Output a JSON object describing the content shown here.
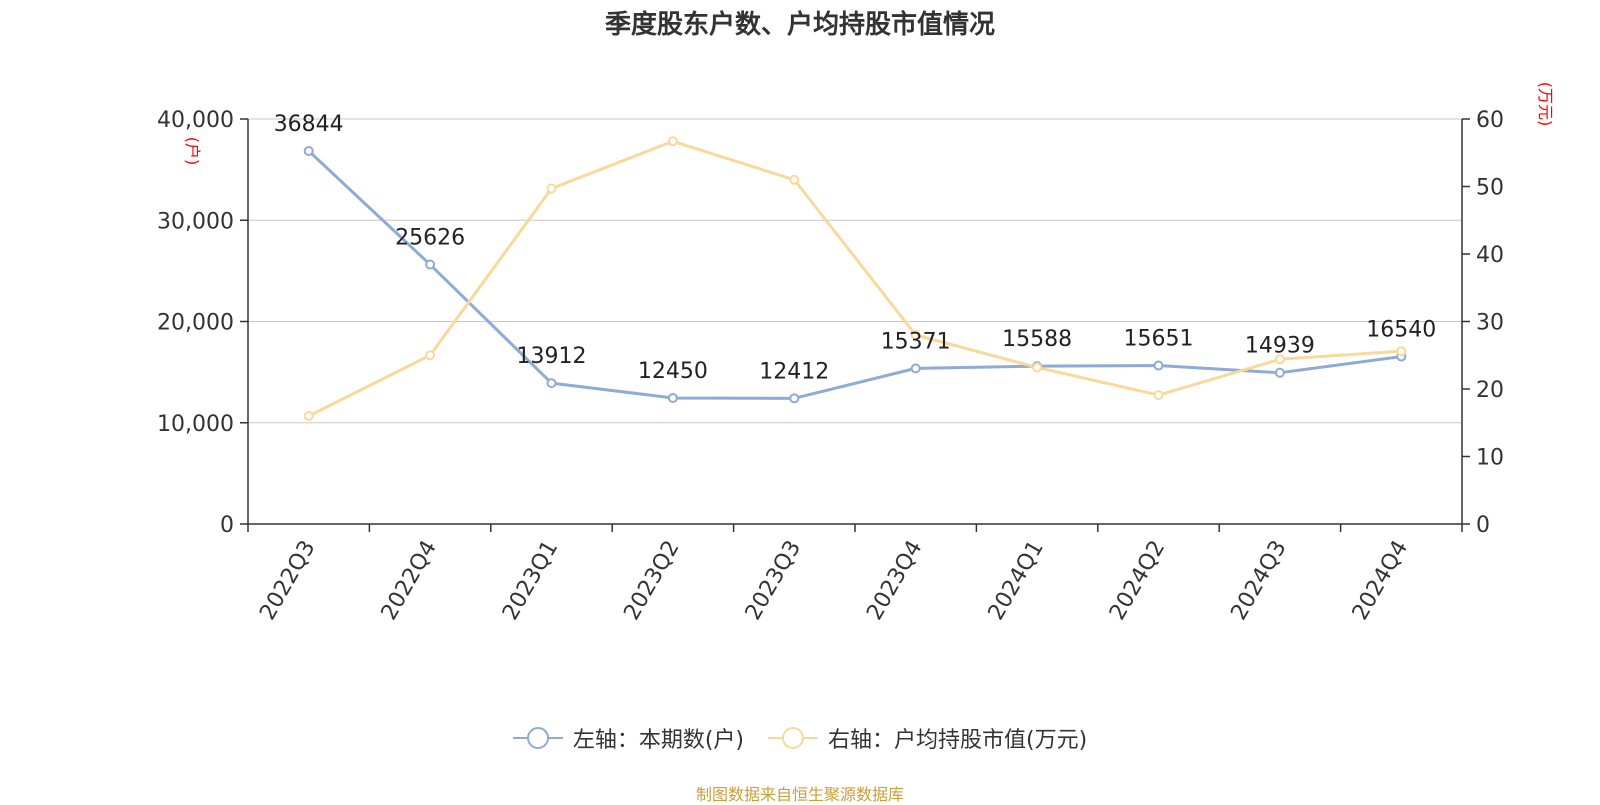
{
  "title": "季度股东户数、户均持股市值情况",
  "source": "制图数据来自恒生聚源数据库",
  "legend": {
    "left_series_label": "左轴：本期数(户)",
    "right_series_label": "右轴：户均持股市值(万元)"
  },
  "colors": {
    "left_series": "#8eaad6",
    "right_series": "#f8d99b",
    "unit_label": "#ff0000",
    "axis": "#333333",
    "grid": "#c8c8c8",
    "source": "#c8a03a"
  },
  "chart_data": {
    "type": "line",
    "categories": [
      "2022Q3",
      "2022Q4",
      "2023Q1",
      "2023Q2",
      "2023Q3",
      "2023Q4",
      "2024Q1",
      "2024Q2",
      "2024Q3",
      "2024Q4"
    ],
    "left_axis": {
      "unit": "(户)",
      "ylim": [
        0,
        40000
      ],
      "ticks": [
        0,
        10000,
        20000,
        30000,
        40000
      ],
      "tick_labels": [
        "0",
        "10,000",
        "20,000",
        "30,000",
        "40,000"
      ]
    },
    "right_axis": {
      "unit": "(万元)",
      "ylim": [
        0,
        60
      ],
      "ticks": [
        0,
        10,
        20,
        30,
        40,
        50,
        60
      ],
      "tick_labels": [
        "0",
        "10",
        "20",
        "30",
        "40",
        "50",
        "60"
      ]
    },
    "grid": true,
    "legend_position": "bottom-center",
    "series": [
      {
        "name": "左轴：本期数(户)",
        "axis": "left",
        "values": [
          36844,
          25626,
          13912,
          12450,
          12412,
          15371,
          15588,
          15651,
          14939,
          16540
        ],
        "data_labels": [
          "36844",
          "25626",
          "13912",
          "12450",
          "12412",
          "15371",
          "15588",
          "15651",
          "14939",
          "16540"
        ]
      },
      {
        "name": "右轴：户均持股市值(万元)",
        "axis": "right",
        "values": [
          16.0,
          25.0,
          49.7,
          56.7,
          51.0,
          28.0,
          23.2,
          19.1,
          24.4,
          25.6
        ]
      }
    ]
  }
}
